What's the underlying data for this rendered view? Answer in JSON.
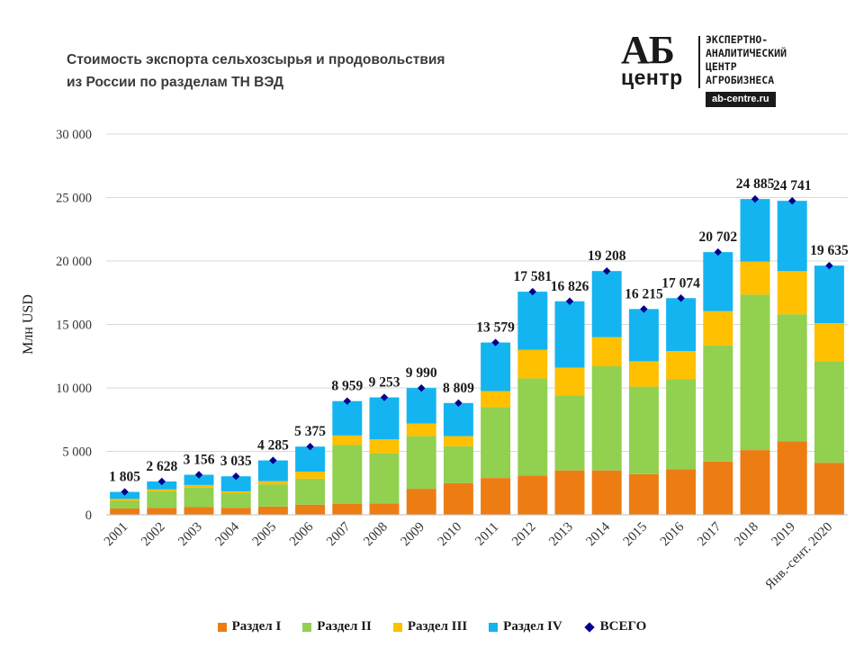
{
  "header": {
    "title_line1": "Стоимость экспорта сельхозсырья и продовольствия",
    "title_line2": "из России по разделам ТН ВЭД"
  },
  "logo": {
    "mark": "АБ",
    "word": "центр",
    "line1": "ЭКСПЕРТНО-",
    "line2": "АНАЛИТИЧЕСКИЙ",
    "line3": "ЦЕНТР",
    "line4": "АГРОБИЗНЕСА",
    "url": "ab-centre.ru"
  },
  "colors": {
    "s1": "#ED7D13",
    "s2": "#92D050",
    "s3": "#FFC000",
    "s4": "#14B4F0",
    "total": "#00008B",
    "grid": "#D9D9D9",
    "axis_text": "#333333"
  },
  "chart_data": {
    "type": "bar",
    "stacked": true,
    "title": "Стоимость экспорта сельхозсырья и продовольствия из России по разделам ТН ВЭД",
    "ylabel": "Млн USD",
    "xlabel": "",
    "ylim": [
      0,
      30000
    ],
    "yticks": [
      0,
      5000,
      10000,
      15000,
      20000,
      25000,
      30000
    ],
    "ytick_labels": [
      "0",
      "5 000",
      "10 000",
      "15 000",
      "20 000",
      "25 000",
      "30 000"
    ],
    "grid": true,
    "legend_position": "bottom",
    "categories": [
      "2001",
      "2002",
      "2003",
      "2004",
      "2005",
      "2006",
      "2007",
      "2008",
      "2009",
      "2010",
      "2011",
      "2012",
      "2013",
      "2014",
      "2015",
      "2016",
      "2017",
      "2018",
      "2019",
      "Янв.-сент. 2020"
    ],
    "series": [
      {
        "name": "Раздел I",
        "values": [
          500,
          550,
          600,
          550,
          650,
          800,
          850,
          900,
          2050,
          2500,
          2900,
          3100,
          3500,
          3500,
          3200,
          3600,
          4200,
          5100,
          5800,
          4100
        ]
      },
      {
        "name": "Раздел II",
        "values": [
          600,
          1300,
          1550,
          1150,
          1750,
          2050,
          4650,
          3950,
          4150,
          2900,
          5600,
          7650,
          5900,
          8200,
          6900,
          7100,
          9150,
          12250,
          10000,
          8000
        ]
      },
      {
        "name": "Раздел III",
        "values": [
          150,
          150,
          200,
          150,
          250,
          550,
          750,
          1100,
          1000,
          800,
          1250,
          2250,
          2200,
          2300,
          2000,
          2200,
          2700,
          2600,
          3400,
          3000
        ]
      },
      {
        "name": "Раздел IV",
        "values": [
          555,
          628,
          806,
          1185,
          1635,
          1975,
          2709,
          3303,
          2790,
          2609,
          3829,
          4581,
          5226,
          5208,
          4115,
          4174,
          4652,
          4935,
          5541,
          4535
        ]
      }
    ],
    "totals": {
      "name": "ВСЕГО",
      "values": [
        1805,
        2628,
        3156,
        3035,
        4285,
        5375,
        8959,
        9253,
        9990,
        8809,
        13579,
        17581,
        16826,
        19208,
        16215,
        17074,
        20702,
        24885,
        24741,
        19635
      ],
      "labels": [
        "1 805",
        "2 628",
        "3 156",
        "3 035",
        "4 285",
        "5 375",
        "8 959",
        "9 253",
        "9 990",
        "8 809",
        "13 579",
        "17 581",
        "16 826",
        "19 208",
        "16 215",
        "17 074",
        "20 702",
        "24 885",
        "24 741",
        "19 635"
      ]
    }
  },
  "legend": {
    "s1": "Раздел I",
    "s2": "Раздел II",
    "s3": "Раздел III",
    "s4": "Раздел IV",
    "total": "ВСЕГО"
  }
}
